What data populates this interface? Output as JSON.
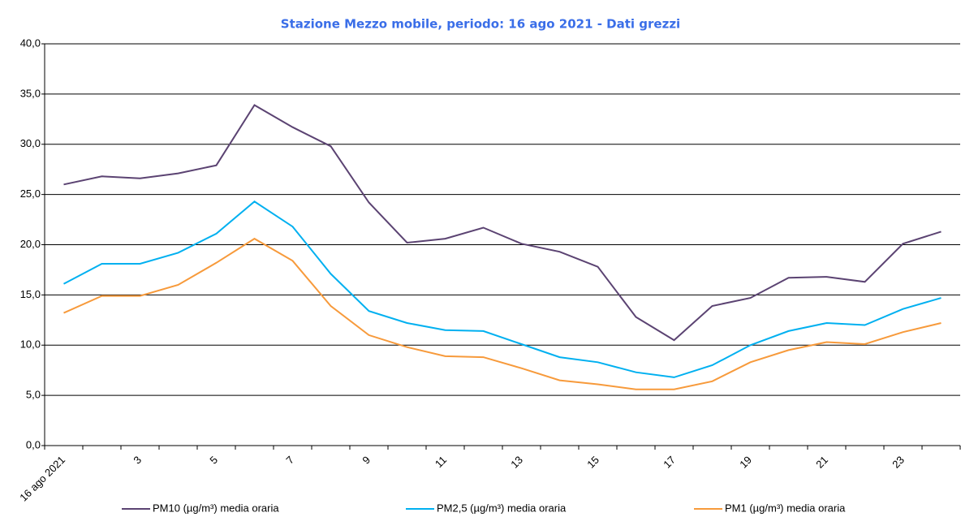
{
  "chart_data": {
    "type": "line",
    "title": "Stazione Mezzo mobile, periodo: 16 ago 2021 - Dati grezzi",
    "categories": [
      "16 ago 2021",
      null,
      "3",
      null,
      "5",
      null,
      "7",
      null,
      "9",
      null,
      "11",
      null,
      "13",
      null,
      "15",
      null,
      "17",
      null,
      "19",
      null,
      "21",
      null,
      "23",
      null
    ],
    "series": [
      {
        "name": "PM10 (µg/m³) media oraria",
        "color": "#5b4372",
        "values": [
          26.0,
          26.8,
          26.6,
          27.1,
          27.9,
          33.9,
          31.7,
          29.8,
          24.2,
          20.2,
          20.6,
          21.7,
          20.1,
          19.3,
          17.8,
          12.8,
          10.5,
          13.9,
          14.7,
          16.7,
          16.8,
          16.3,
          20.1,
          21.3
        ]
      },
      {
        "name": "PM2,5 (µg/m³) media oraria",
        "color": "#00b0f0",
        "values": [
          16.1,
          18.1,
          18.1,
          19.2,
          21.1,
          24.3,
          21.8,
          17.1,
          13.4,
          12.2,
          11.5,
          11.4,
          10.1,
          8.8,
          8.3,
          7.3,
          6.8,
          8.0,
          10.0,
          11.4,
          12.2,
          12.0,
          13.6,
          14.7
        ]
      },
      {
        "name": "PM1 (µg/m³) media oraria",
        "color": "#f79a3b",
        "values": [
          13.2,
          14.9,
          14.9,
          16.0,
          18.2,
          20.6,
          18.4,
          13.9,
          11.0,
          9.8,
          8.9,
          8.8,
          7.7,
          6.5,
          6.1,
          5.6,
          5.6,
          6.4,
          8.3,
          9.5,
          10.3,
          10.1,
          11.3,
          12.2
        ]
      }
    ],
    "ylim": [
      0,
      40
    ],
    "yticks": [
      {
        "value": 0,
        "label": "0,0"
      },
      {
        "value": 5,
        "label": "5,0"
      },
      {
        "value": 10,
        "label": "10,0"
      },
      {
        "value": 15,
        "label": "15,0"
      },
      {
        "value": 20,
        "label": "20,0"
      },
      {
        "value": 25,
        "label": "25,0"
      },
      {
        "value": 30,
        "label": "30,0"
      },
      {
        "value": 35,
        "label": "35,0"
      },
      {
        "value": 40,
        "label": "40,0"
      }
    ],
    "grid": true,
    "legend": "bottom"
  }
}
